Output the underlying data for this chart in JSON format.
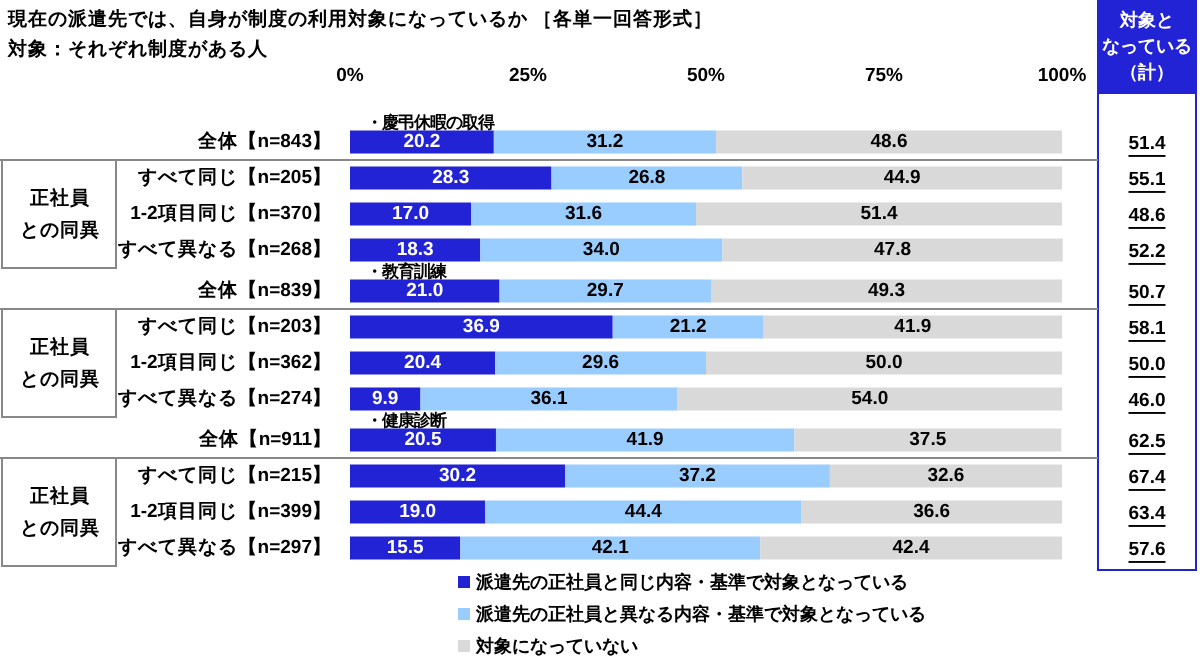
{
  "chart_data": {
    "type": "bar",
    "orientation": "horizontal",
    "stacked": true,
    "title": "現在の派遣先では、自身が制度の利用対象になっているか ［各単一回答形式］",
    "subtitle": "対象：それぞれ制度がある人",
    "categories": [
      "全体【n=843】",
      "すべて同じ【n=205】",
      "1-2項目同じ【n=370】",
      "すべて異なる【n=268】",
      "全体【n=839】",
      "すべて同じ【n=203】",
      "1-2項目同じ【n=362】",
      "すべて異なる【n=274】",
      "全体【n=911】",
      "すべて同じ【n=215】",
      "1-2項目同じ【n=399】",
      "すべて異なる【n=297】"
    ],
    "series": [
      {
        "name": "派遣先の正社員と同じ内容・基準で対象となっている",
        "color": "#2323d6",
        "values": [
          20.2,
          28.3,
          17.0,
          18.3,
          21.0,
          36.9,
          20.4,
          9.9,
          20.5,
          30.2,
          19.0,
          15.5
        ],
        "value_labels": [
          "20.2",
          "28.3",
          "17.0",
          "18.3",
          "21.0",
          "36.9",
          "20.4",
          "9.9",
          "20.5",
          "30.2",
          "19.0",
          "15.5"
        ]
      },
      {
        "name": "派遣先の正社員と異なる内容・基準で対象となっている",
        "color": "#99ccff",
        "values": [
          31.2,
          26.8,
          31.6,
          34.0,
          29.7,
          21.2,
          29.6,
          36.1,
          41.9,
          37.2,
          44.4,
          42.1
        ],
        "value_labels": [
          "31.2",
          "26.8",
          "31.6",
          "34.0",
          "29.7",
          "21.2",
          "29.6",
          "36.1",
          "41.9",
          "37.2",
          "44.4",
          "42.1"
        ]
      },
      {
        "name": "対象になっていない",
        "color": "#d9d9d9",
        "values": [
          48.6,
          44.9,
          51.4,
          47.8,
          49.3,
          41.9,
          50.0,
          54.0,
          37.5,
          32.6,
          36.6,
          42.4
        ],
        "value_labels": [
          "48.6",
          "44.9",
          "51.4",
          "47.8",
          "49.3",
          "41.9",
          "50.0",
          "54.0",
          "37.5",
          "32.6",
          "36.6",
          "42.4"
        ]
      }
    ],
    "xlim": [
      0,
      100
    ],
    "xticks": [
      {
        "value": 0,
        "label": "0%"
      },
      {
        "value": 25,
        "label": "25%"
      },
      {
        "value": 50,
        "label": "50%"
      },
      {
        "value": 75,
        "label": "75%"
      },
      {
        "value": 100,
        "label": "100%"
      }
    ],
    "annotations": [
      "・慶弔休暇の取得",
      "・教育訓練",
      "・健康診断",
      "正社員との同異",
      "正社員との同異",
      "正社員との同異",
      "対象となっている（計）",
      "51.4",
      "55.1",
      "48.6",
      "52.2",
      "50.7",
      "58.1",
      "50.0",
      "46.0",
      "62.5",
      "67.4",
      "63.4",
      "57.6"
    ],
    "legend": "bottom"
  }
}
